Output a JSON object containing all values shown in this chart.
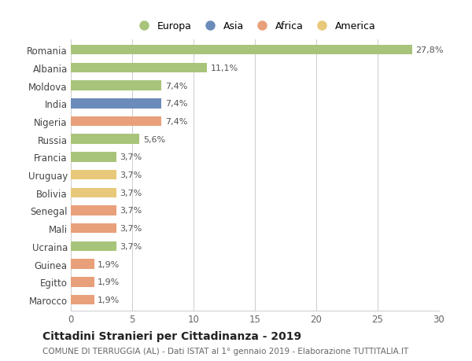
{
  "countries": [
    "Romania",
    "Albania",
    "Moldova",
    "India",
    "Nigeria",
    "Russia",
    "Francia",
    "Uruguay",
    "Bolivia",
    "Senegal",
    "Mali",
    "Ucraina",
    "Guinea",
    "Egitto",
    "Marocco"
  ],
  "values": [
    27.8,
    11.1,
    7.4,
    7.4,
    7.4,
    5.6,
    3.7,
    3.7,
    3.7,
    3.7,
    3.7,
    3.7,
    1.9,
    1.9,
    1.9
  ],
  "labels": [
    "27,8%",
    "11,1%",
    "7,4%",
    "7,4%",
    "7,4%",
    "5,6%",
    "3,7%",
    "3,7%",
    "3,7%",
    "3,7%",
    "3,7%",
    "3,7%",
    "1,9%",
    "1,9%",
    "1,9%"
  ],
  "colors": [
    "#a8c47a",
    "#a8c47a",
    "#a8c47a",
    "#6b8cba",
    "#e8a07a",
    "#a8c47a",
    "#a8c47a",
    "#e8c87a",
    "#e8c87a",
    "#e8a07a",
    "#e8a07a",
    "#a8c47a",
    "#e8a07a",
    "#e8a07a",
    "#e8a07a"
  ],
  "legend_items": [
    {
      "label": "Europa",
      "color": "#a8c47a"
    },
    {
      "label": "Asia",
      "color": "#6b8cba"
    },
    {
      "label": "Africa",
      "color": "#e8a07a"
    },
    {
      "label": "America",
      "color": "#e8c87a"
    }
  ],
  "xlim": [
    0,
    30
  ],
  "xticks": [
    0,
    5,
    10,
    15,
    20,
    25,
    30
  ],
  "title": "Cittadini Stranieri per Cittadinanza - 2019",
  "subtitle": "COMUNE DI TERRUGGIA (AL) - Dati ISTAT al 1° gennaio 2019 - Elaborazione TUTTITALIA.IT",
  "background_color": "#ffffff",
  "bar_height": 0.55,
  "grid_color": "#cccccc",
  "label_color": "#555555",
  "ytick_color": "#444444"
}
